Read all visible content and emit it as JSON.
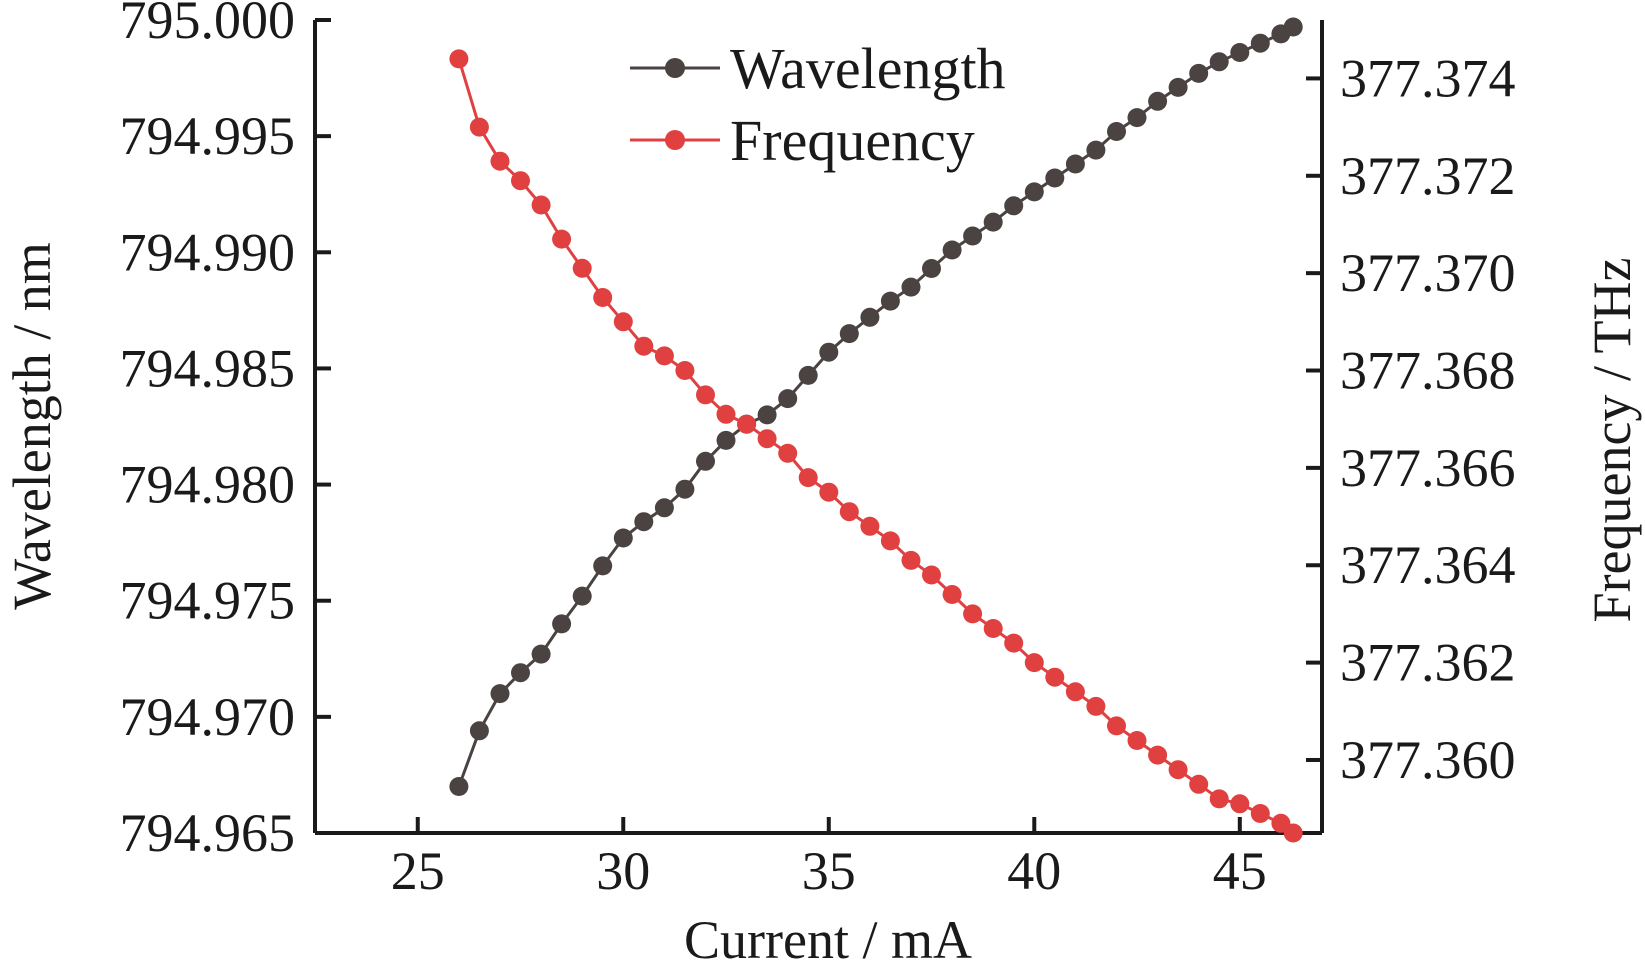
{
  "chart_data": {
    "type": "line",
    "xlabel": "Current / mA",
    "ylabel": "Wavelength / nm",
    "y2label": "Frequency / THz",
    "xlim": [
      22.5,
      47
    ],
    "ylim": [
      794.965,
      795.0
    ],
    "y2lim": [
      377.3585,
      377.3752
    ],
    "xticks": [
      "25",
      "30",
      "35",
      "40",
      "45"
    ],
    "yticks": [
      "794.965",
      "794.970",
      "794.975",
      "794.980",
      "794.985",
      "794.990",
      "794.995",
      "795.000"
    ],
    "y2ticks": [
      "377.360",
      "377.362",
      "377.364",
      "377.366",
      "377.368",
      "377.370",
      "377.372",
      "377.374"
    ],
    "grid": false,
    "legend_position": "top-center",
    "x": [
      26.0,
      26.5,
      27.0,
      27.5,
      28.0,
      28.5,
      29.0,
      29.5,
      30.0,
      30.5,
      31.0,
      31.5,
      32.0,
      32.5,
      33.0,
      33.5,
      34.0,
      34.5,
      35.0,
      35.5,
      36.0,
      36.5,
      37.0,
      37.5,
      38.0,
      38.5,
      39.0,
      39.5,
      40.0,
      40.5,
      41.0,
      41.5,
      42.0,
      42.5,
      43.0,
      43.5,
      44.0,
      44.5,
      45.0,
      45.5,
      46.0,
      46.3
    ],
    "series": [
      {
        "name": "Wavelength",
        "color": "#4a4341",
        "axis": "left",
        "values": [
          794.967,
          794.9694,
          794.971,
          794.9719,
          794.9727,
          794.974,
          794.9752,
          794.9765,
          794.9777,
          794.9784,
          794.979,
          794.9798,
          794.981,
          794.9819,
          794.9826,
          794.983,
          794.9837,
          794.9847,
          794.9857,
          794.9865,
          794.9872,
          794.9879,
          794.9885,
          794.9893,
          794.9901,
          794.9907,
          794.9913,
          794.992,
          794.9926,
          794.9932,
          794.9938,
          794.9944,
          794.9952,
          794.9958,
          794.9965,
          794.9971,
          794.9977,
          794.9982,
          794.9986,
          794.999,
          794.9994,
          794.9997
        ]
      },
      {
        "name": "Frequency",
        "color": "#e04040",
        "axis": "right",
        "values": [
          377.3744,
          377.373,
          377.3723,
          377.3719,
          377.3714,
          377.3707,
          377.3701,
          377.3695,
          377.369,
          377.3685,
          377.3683,
          377.368,
          377.3675,
          377.3671,
          377.3669,
          377.3666,
          377.3663,
          377.3658,
          377.3655,
          377.3651,
          377.3648,
          377.3645,
          377.3641,
          377.3638,
          377.3634,
          377.363,
          377.3627,
          377.3624,
          377.362,
          377.3617,
          377.3614,
          377.3611,
          377.3607,
          377.3604,
          377.3601,
          377.3598,
          377.3595,
          377.3592,
          377.3591,
          377.3589,
          377.3587,
          377.3585
        ]
      }
    ]
  }
}
